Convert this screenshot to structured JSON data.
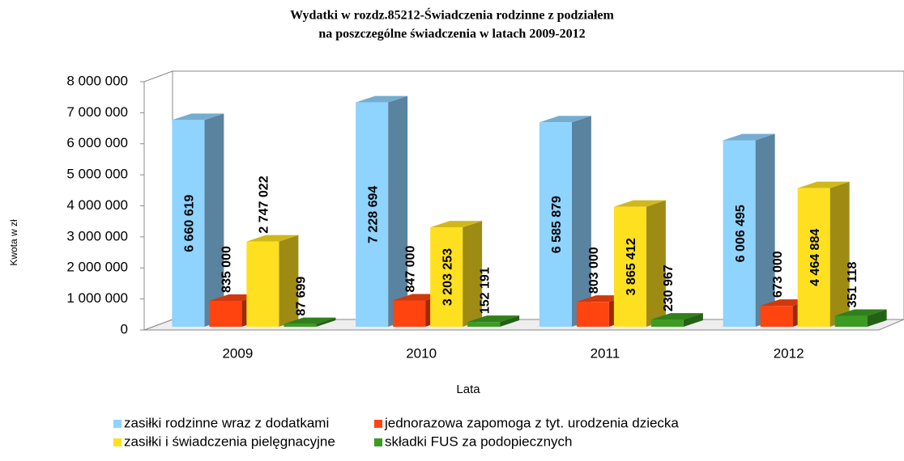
{
  "chart_data": {
    "type": "bar3d",
    "title": "Wydatki w rozdz.85212-Świadczenia rodzinne  z podziałem",
    "subtitle": "na poszczególne świadczenia w latach 2009-2012",
    "y_label": "Kwota w zł",
    "x_label": "Lata",
    "categories": [
      "2009",
      "2010",
      "2011",
      "2012"
    ],
    "series": [
      {
        "name": "zasiłki rodzinne wraz z dodatkami",
        "color": "#8fd3ff",
        "values": [
          6660619,
          7228694,
          6585879,
          6006495
        ],
        "value_labels": [
          "6 660 619",
          "7 228 694",
          "6 585 879",
          "6 006 495"
        ]
      },
      {
        "name": "jednorazowa zapomoga z tyt. urodzenia dziecka",
        "color": "#ff4410",
        "values": [
          835000,
          847000,
          803000,
          673000
        ],
        "value_labels": [
          "835 000",
          "847 000",
          "803 000",
          "673 000"
        ]
      },
      {
        "name": "zasiłki i świadczenia pielęgnacyjne",
        "color": "#ffe020",
        "values": [
          2747022,
          3203253,
          3865412,
          4464884
        ],
        "value_labels": [
          "2 747 022",
          "3 203 253",
          "3 865 412",
          "4 464 884"
        ]
      },
      {
        "name": "składki FUS za podopiecznych",
        "color": "#3c9c22",
        "values": [
          87699,
          152191,
          230967,
          351118
        ],
        "value_labels": [
          "87 699",
          "152 191",
          "230 967",
          "351 118"
        ]
      }
    ],
    "ylim": [
      0,
      8000000
    ],
    "yticks": [
      0,
      {
        "value": 1000000,
        "label": "1 000 000"
      },
      {
        "value": 2000000,
        "label": "2 000 000"
      },
      {
        "value": 3000000,
        "label": "3 000 000"
      },
      {
        "value": 4000000,
        "label": "4 000 000"
      },
      {
        "value": 5000000,
        "label": "5 000 000"
      },
      {
        "value": 6000000,
        "label": "6 000 000"
      },
      {
        "value": 7000000,
        "label": "7 000 000"
      },
      {
        "value": 8000000,
        "label": "8 000 000"
      }
    ],
    "grid": false
  }
}
